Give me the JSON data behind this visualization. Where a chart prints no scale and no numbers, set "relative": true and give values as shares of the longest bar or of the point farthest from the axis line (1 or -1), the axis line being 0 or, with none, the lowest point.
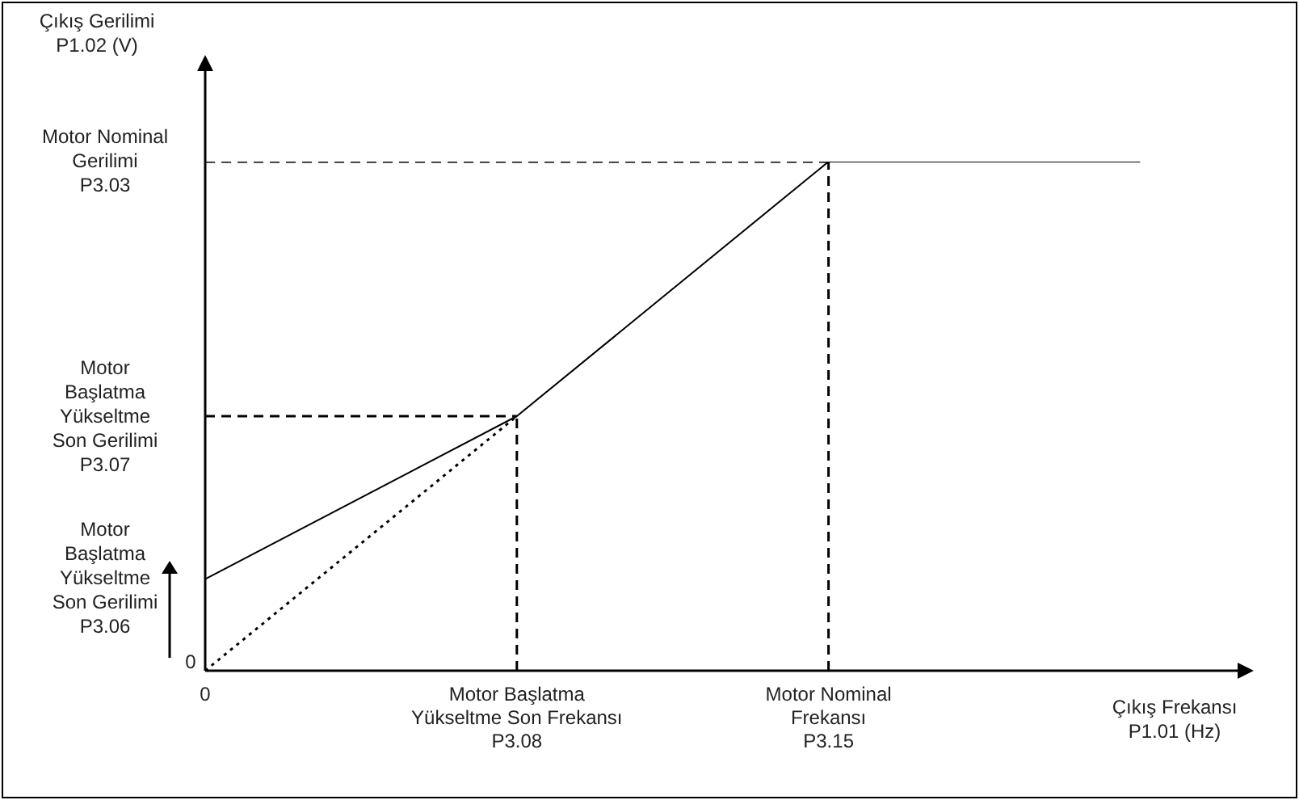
{
  "chart_data": {
    "type": "line",
    "relative": true,
    "xlabel": "Çıkış Frekansı\nP1.01 (Hz)",
    "categories": [
      "0",
      null,
      null,
      "Motor Başlatma\nYükseltme Son Frekansı\nP3.08",
      null,
      null,
      "Motor Nominal\nFrekansı\nP3.15",
      null,
      null,
      null,
      null
    ],
    "series": [
      {
        "values": [
          0.18,
          null,
          null,
          0.5,
          null,
          null,
          1,
          null,
          null,
          1,
          null
        ],
        "color": "#000000",
        "line_style": "solid"
      },
      {
        "values": [
          0,
          null,
          null,
          0.5,
          null,
          null,
          null,
          null,
          null,
          null,
          null
        ],
        "color": "#000000",
        "line_style": "dotted"
      },
      {
        "values": [
          1,
          null,
          null,
          null,
          null,
          null,
          1,
          null,
          null,
          null,
          null
        ],
        "color": "#000000",
        "line_style": "dashed"
      },
      {
        "values": [
          0.5,
          null,
          null,
          0.5,
          null,
          null,
          null,
          null,
          null,
          null,
          null
        ],
        "color": "#000000",
        "line_style": "dashed"
      }
    ],
    "ref_lines": [
      {
        "axis": "x",
        "value": "Motor Başlatma\nYükseltme Son Frekansı\nP3.08",
        "line_style": "dashed"
      },
      {
        "axis": "x",
        "value": "Motor Nominal\nFrekansı\nP3.15",
        "line_style": "dashed"
      }
    ],
    "annotations": [
      "Çıkış Gerilimi\nP1.02 (V)",
      "Motor Nominal\nGerilimi\nP3.03",
      "Motor\nBaşlatma\nYükseltme\nSon Gerilimi\nP3.07",
      "Motor\nBaşlatma\nYükseltme\nSon Gerilimi\nP3.06",
      "0"
    ],
    "grid": false,
    "legend": false,
    "marker": "none"
  }
}
